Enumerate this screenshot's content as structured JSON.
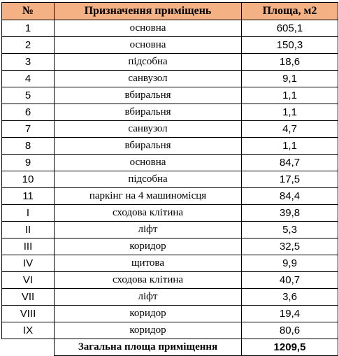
{
  "table": {
    "header": [
      "№",
      "Призначення приміщень",
      "Площа, м2"
    ],
    "rows": [
      [
        "1",
        "основна",
        "605,1"
      ],
      [
        "2",
        "основна",
        "150,3"
      ],
      [
        "3",
        "підсобна",
        "18,6"
      ],
      [
        "4",
        "санвузол",
        "9,1"
      ],
      [
        "5",
        "вбиральня",
        "1,1"
      ],
      [
        "6",
        "вбиральня",
        "1,1"
      ],
      [
        "7",
        "санвузол",
        "4,7"
      ],
      [
        "8",
        "вбиральня",
        "1,1"
      ],
      [
        "9",
        "основна",
        "84,7"
      ],
      [
        "10",
        "підсобна",
        "17,5"
      ],
      [
        "11",
        "паркінг на 4 машиномісця",
        "84,4"
      ],
      [
        "I",
        "сходова клітина",
        "39,8"
      ],
      [
        "II",
        "ліфт",
        "5,3"
      ],
      [
        "III",
        "коридор",
        "32,5"
      ],
      [
        "IV",
        "щитова",
        "9,9"
      ],
      [
        "VI",
        "сходова клітина",
        "40,7"
      ],
      [
        "VII",
        "ліфт",
        "3,6"
      ],
      [
        "VIII",
        "коридор",
        "19,4"
      ],
      [
        "IX",
        "коридор",
        "80,6"
      ]
    ],
    "total": {
      "label": "Загальна площа приміщення",
      "value": "1209,5"
    }
  }
}
